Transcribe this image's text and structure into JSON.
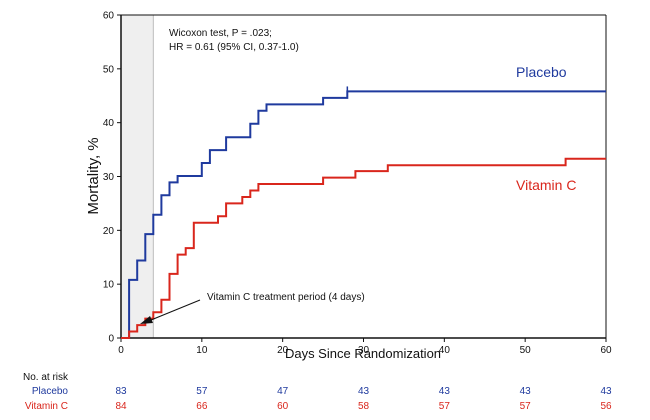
{
  "chart_data": {
    "type": "line",
    "subtype": "kaplan-meier step",
    "xlabel": "Days Since Randomization",
    "ylabel": "Mortality, %",
    "xlim": [
      0,
      60
    ],
    "ylim": [
      0,
      60
    ],
    "xticks": [
      0,
      10,
      20,
      30,
      40,
      50,
      60
    ],
    "yticks": [
      0,
      10,
      20,
      30,
      40,
      50,
      60
    ],
    "shaded_period": {
      "from": 0,
      "to": 4,
      "label": "Vitamin C treatment period (4 days)"
    },
    "stats_annotation": [
      "Wicoxon test, P = .023;",
      "HR = 0.61 (95% CI, 0.37-1.0)"
    ],
    "series": [
      {
        "name": "Placebo",
        "color": "#1f3a9e",
        "points": [
          [
            0,
            0
          ],
          [
            1,
            0
          ],
          [
            1,
            10.8
          ],
          [
            2,
            10.8
          ],
          [
            2,
            14.4
          ],
          [
            3,
            14.4
          ],
          [
            3,
            19.3
          ],
          [
            4,
            19.3
          ],
          [
            4,
            22.9
          ],
          [
            5,
            22.9
          ],
          [
            5,
            26.5
          ],
          [
            6,
            26.5
          ],
          [
            6,
            28.9
          ],
          [
            7,
            28.9
          ],
          [
            7,
            30.1
          ],
          [
            10,
            30.1
          ],
          [
            10,
            32.5
          ],
          [
            11,
            32.5
          ],
          [
            11,
            34.9
          ],
          [
            13,
            34.9
          ],
          [
            13,
            37.3
          ],
          [
            16,
            37.3
          ],
          [
            16,
            39.8
          ],
          [
            17,
            39.8
          ],
          [
            17,
            42.2
          ],
          [
            18,
            42.2
          ],
          [
            18,
            43.4
          ],
          [
            25,
            43.4
          ],
          [
            25,
            44.6
          ],
          [
            28,
            44.6
          ],
          [
            28,
            45.8
          ],
          [
            60,
            45.8
          ]
        ],
        "censor_x": 28
      },
      {
        "name": "Vitamin C",
        "color": "#d9261c",
        "points": [
          [
            0,
            0
          ],
          [
            1,
            0
          ],
          [
            1,
            1.2
          ],
          [
            2,
            1.2
          ],
          [
            2,
            2.4
          ],
          [
            3,
            2.4
          ],
          [
            3,
            3.6
          ],
          [
            4,
            3.6
          ],
          [
            4,
            4.8
          ],
          [
            5,
            4.8
          ],
          [
            5,
            7.1
          ],
          [
            6,
            7.1
          ],
          [
            6,
            11.9
          ],
          [
            7,
            11.9
          ],
          [
            7,
            15.5
          ],
          [
            8,
            15.5
          ],
          [
            8,
            16.7
          ],
          [
            9,
            16.7
          ],
          [
            9,
            21.4
          ],
          [
            12,
            21.4
          ],
          [
            12,
            22.6
          ],
          [
            13,
            22.6
          ],
          [
            13,
            25.0
          ],
          [
            15,
            25.0
          ],
          [
            15,
            26.2
          ],
          [
            16,
            26.2
          ],
          [
            16,
            27.4
          ],
          [
            17,
            27.4
          ],
          [
            17,
            28.6
          ],
          [
            25,
            28.6
          ],
          [
            25,
            29.8
          ],
          [
            29,
            29.8
          ],
          [
            29,
            31.0
          ],
          [
            33,
            31.0
          ],
          [
            33,
            32.1
          ],
          [
            55,
            32.1
          ],
          [
            55,
            33.3
          ],
          [
            60,
            33.3
          ]
        ]
      }
    ],
    "risk_table": {
      "title": "No. at risk",
      "x": [
        0,
        10,
        20,
        30,
        40,
        50,
        60
      ],
      "rows": [
        {
          "name": "Placebo",
          "color": "#1f3a9e",
          "values": [
            83,
            57,
            47,
            43,
            43,
            43,
            43
          ]
        },
        {
          "name": "Vitamin C",
          "color": "#d9261c",
          "values": [
            84,
            66,
            60,
            58,
            57,
            57,
            56
          ]
        }
      ]
    }
  }
}
